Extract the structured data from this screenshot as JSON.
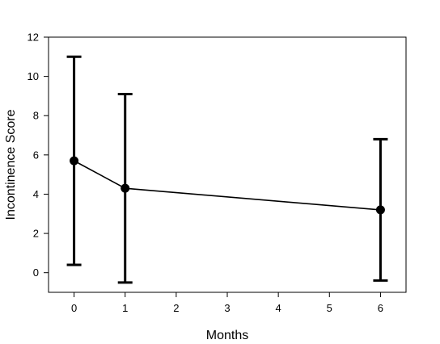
{
  "chart_data": {
    "type": "line",
    "title": "",
    "xlabel": "Months",
    "ylabel": "Incontinence Score",
    "xlim": [
      -0.5,
      6.5
    ],
    "ylim": [
      -1,
      12
    ],
    "x_ticks": [
      "0",
      "1",
      "2",
      "3",
      "4",
      "5",
      "6"
    ],
    "y_ticks": [
      "0",
      "2",
      "4",
      "6",
      "8",
      "10",
      "12"
    ],
    "grid": false,
    "legend": "none",
    "series": [
      {
        "x": [
          0,
          1,
          6
        ],
        "y": [
          5.7,
          4.3,
          3.2
        ],
        "error_low": [
          0.4,
          -0.5,
          -0.4
        ],
        "error_high": [
          11.0,
          9.1,
          6.8
        ],
        "color": "#000000",
        "marker": "circle"
      }
    ]
  }
}
